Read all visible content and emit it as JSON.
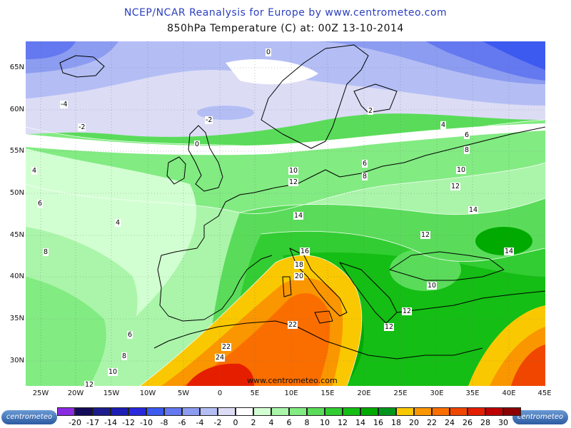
{
  "header": {
    "title": "NCEP/NCAR Reanalysis for Europe by www.centrometeo.com",
    "subtitle": "850hPa Temperature (C) at: 00Z 13-10-2014"
  },
  "map": {
    "lat_labels": [
      "65N",
      "60N",
      "55N",
      "50N",
      "45N",
      "40N",
      "35N",
      "30N"
    ],
    "lon_labels": [
      "25W",
      "20W",
      "15W",
      "10W",
      "5W",
      "0",
      "5E",
      "10E",
      "15E",
      "20E",
      "25E",
      "30E",
      "35E",
      "40E",
      "45E"
    ],
    "watermark": "www.centrometeo.com",
    "isotherm_labels": [
      "0",
      "-4",
      "-2",
      "-2",
      "0",
      "2",
      "4",
      "4",
      "6",
      "8",
      "4",
      "6",
      "8",
      "10",
      "12",
      "6",
      "8",
      "10",
      "12",
      "14",
      "14",
      "16",
      "18",
      "20",
      "22",
      "22",
      "24",
      "12",
      "14",
      "10",
      "12",
      "12",
      "6",
      "8",
      "10",
      "12"
    ]
  },
  "legend": {
    "logo_text": "centrometeo",
    "values": [
      "-20",
      "-17",
      "-14",
      "-12",
      "-10",
      "-8",
      "-6",
      "-4",
      "-2",
      "0",
      "2",
      "4",
      "6",
      "8",
      "10",
      "12",
      "14",
      "16",
      "18",
      "20",
      "22",
      "24",
      "26",
      "28",
      "30"
    ],
    "colors": [
      "#8a2be2",
      "#140a5a",
      "#1c1c8c",
      "#1e1eb4",
      "#2828dc",
      "#3c5af0",
      "#6478f0",
      "#8c9cf0",
      "#b4bef5",
      "#dcdcf5",
      "#ffffff",
      "#d2ffd2",
      "#aaf5aa",
      "#82eb82",
      "#5adc5a",
      "#32cd32",
      "#14be14",
      "#00aa00",
      "#00961e",
      "#fac800",
      "#fa9600",
      "#fa6e00",
      "#f04600",
      "#e61e00",
      "#be0000",
      "#8c0000"
    ]
  }
}
